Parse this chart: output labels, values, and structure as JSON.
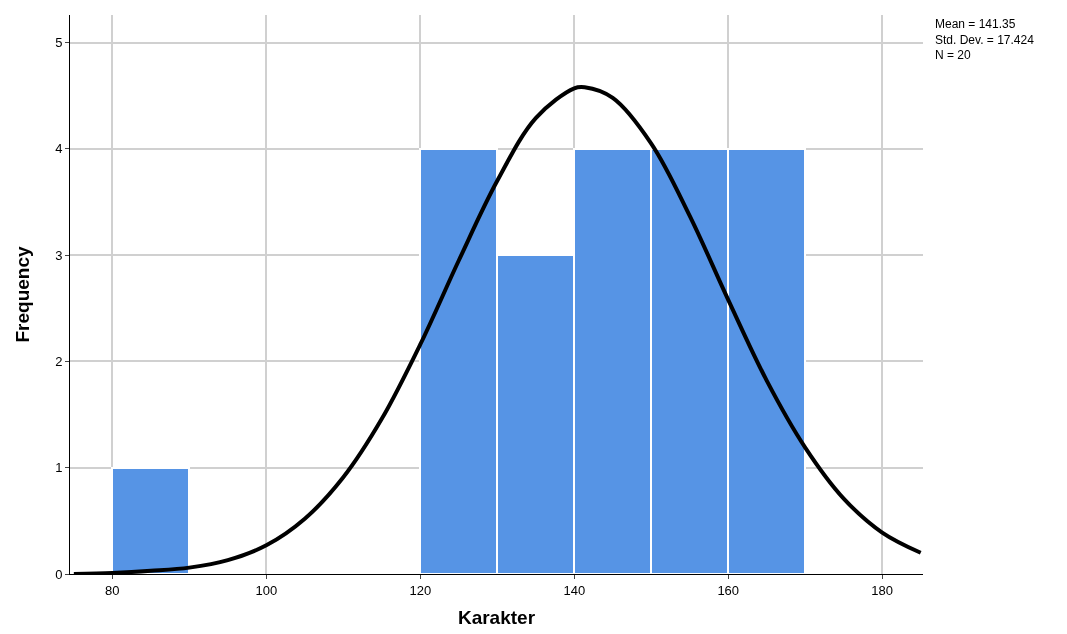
{
  "chart_data": {
    "type": "histogram",
    "xlabel": "Karakter",
    "ylabel": "Frequency",
    "bins": [
      80,
      90,
      100,
      110,
      120,
      130,
      140,
      150,
      160,
      170
    ],
    "values": [
      1,
      0,
      0,
      0,
      4,
      3,
      4,
      4,
      4
    ],
    "color": "#5694e5",
    "series": [
      {
        "type": "line",
        "color": "#000000",
        "x": [
          75,
          80,
          85,
          90,
          95,
          100,
          105,
          110,
          115,
          120,
          125,
          130,
          135,
          140,
          141.35,
          145,
          150,
          155,
          160,
          165,
          170,
          175,
          180,
          185
        ],
        "values": [
          0.0,
          0.01,
          0.03,
          0.06,
          0.13,
          0.27,
          0.52,
          0.91,
          1.46,
          2.16,
          2.95,
          3.7,
          4.29,
          4.57,
          4.58,
          4.48,
          4.05,
          3.37,
          2.58,
          1.82,
          1.19,
          0.71,
          0.39,
          0.2
        ]
      }
    ],
    "xlim": [
      74.5,
      185.3
    ],
    "xticks": [
      80,
      100,
      120,
      140,
      160,
      180
    ],
    "ylim": [
      0,
      5.26
    ],
    "yticks": [
      0,
      1,
      2,
      3,
      4,
      5
    ],
    "grid": true,
    "marker": "none",
    "line_style": "solid",
    "annotations": [
      "Mean = 141.35\nStd. Dev. = 17.424\nN = 20"
    ]
  }
}
